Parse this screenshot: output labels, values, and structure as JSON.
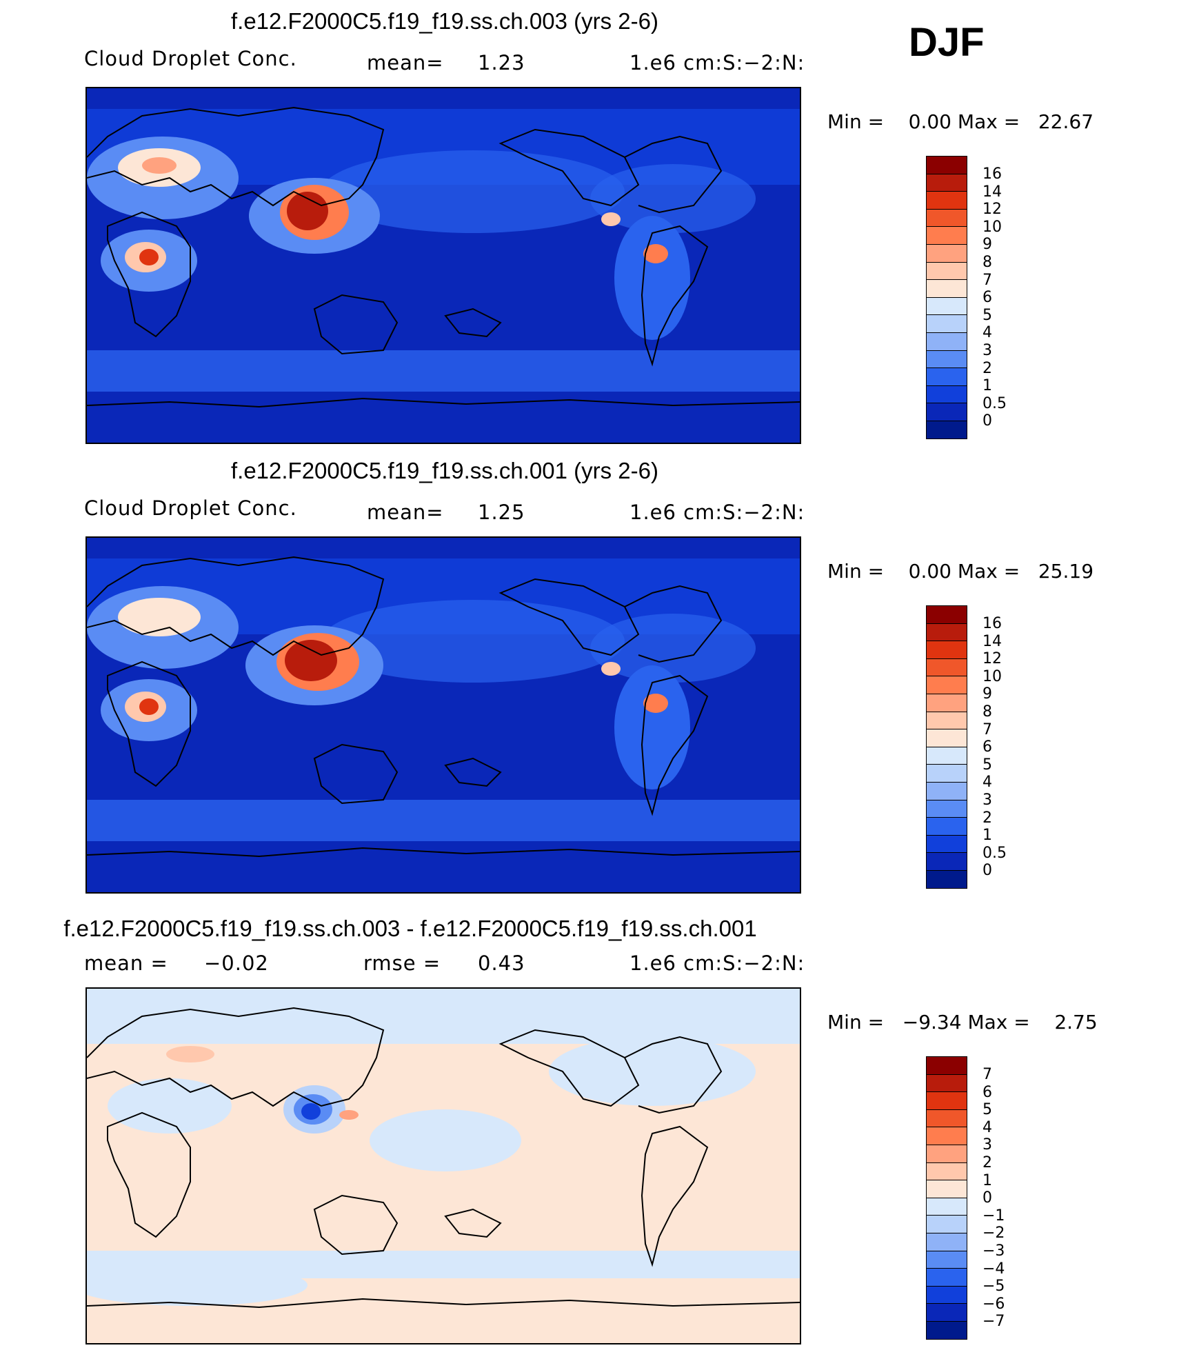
{
  "season": "DJF",
  "panels": [
    {
      "title": "f.e12.F2000C5.f19_f19.ss.ch.003 (yrs 2-6)",
      "variable": "Cloud Droplet Conc.",
      "stat_label": "mean=",
      "stat_value": "1.23",
      "units": "1.e6 cm:S:−2:N:",
      "min_label": "Min =",
      "min_value": "0.00",
      "max_label": "Max =",
      "max_value": "22.67",
      "colorbar_labels": [
        "16",
        "14",
        "12",
        "10",
        "9",
        "8",
        "7",
        "6",
        "5",
        "4",
        "3",
        "2",
        "1",
        "0.5",
        "0"
      ],
      "colorbar_colors": [
        "#8b0000",
        "#b81c0c",
        "#e03410",
        "#f0572a",
        "#ff7d4e",
        "#ffa27f",
        "#ffc8ad",
        "#fde6d6",
        "#d7e8fb",
        "#b8d2fa",
        "#8fb2f7",
        "#5a8cf4",
        "#2a63ee",
        "#1140db",
        "#0a27b8",
        "#001a8c"
      ]
    },
    {
      "title": "f.e12.F2000C5.f19_f19.ss.ch.001 (yrs 2-6)",
      "variable": "Cloud Droplet Conc.",
      "stat_label": "mean=",
      "stat_value": "1.25",
      "units": "1.e6 cm:S:−2:N:",
      "min_label": "Min =",
      "min_value": "0.00",
      "max_label": "Max =",
      "max_value": "25.19",
      "colorbar_labels": [
        "16",
        "14",
        "12",
        "10",
        "9",
        "8",
        "7",
        "6",
        "5",
        "4",
        "3",
        "2",
        "1",
        "0.5",
        "0"
      ],
      "colorbar_colors": [
        "#8b0000",
        "#b81c0c",
        "#e03410",
        "#f0572a",
        "#ff7d4e",
        "#ffa27f",
        "#ffc8ad",
        "#fde6d6",
        "#d7e8fb",
        "#b8d2fa",
        "#8fb2f7",
        "#5a8cf4",
        "#2a63ee",
        "#1140db",
        "#0a27b8",
        "#001a8c"
      ]
    },
    {
      "title": "f.e12.F2000C5.f19_f19.ss.ch.003 - f.e12.F2000C5.f19_f19.ss.ch.001",
      "variable": "mean =",
      "variable_value": "−0.02",
      "stat_label": "rmse =",
      "stat_value": "0.43",
      "units": "1.e6 cm:S:−2:N:",
      "min_label": "Min =",
      "min_value": "−9.34",
      "max_label": "Max =",
      "max_value": "2.75",
      "colorbar_labels": [
        "7",
        "6",
        "5",
        "4",
        "3",
        "2",
        "1",
        "0",
        "−1",
        "−2",
        "−3",
        "−4",
        "−5",
        "−6",
        "−7"
      ],
      "colorbar_colors": [
        "#8b0000",
        "#b81c0c",
        "#e03410",
        "#f0572a",
        "#ff7d4e",
        "#ffa27f",
        "#ffc8ad",
        "#fde6d6",
        "#d7e8fb",
        "#b8d2fa",
        "#8fb2f7",
        "#5a8cf4",
        "#2a63ee",
        "#1140db",
        "#0a27b8",
        "#001a8c"
      ]
    }
  ]
}
